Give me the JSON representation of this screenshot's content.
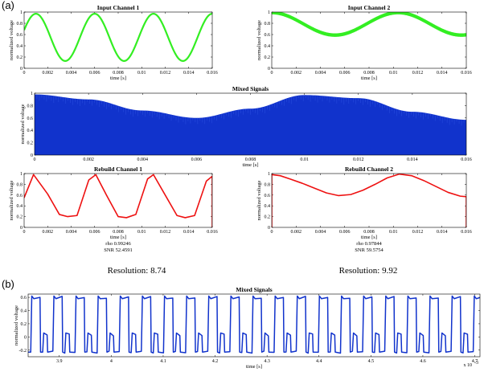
{
  "figure": {
    "label_a": "(a)",
    "label_b": "(b)",
    "resolution_1": "Resolution: 8.74",
    "resolution_2": "Resolution: 9.92"
  },
  "chart_data": [
    {
      "id": "in1",
      "type": "line",
      "title": "Input Channel 1",
      "xlabel": "time [s]",
      "ylabel": "normalized voltage",
      "xlim": [
        0,
        0.016
      ],
      "ylim": [
        0,
        1
      ],
      "xticks": [
        0,
        0.002,
        0.004,
        0.006,
        0.008,
        0.01,
        0.012,
        0.014,
        0.016
      ],
      "xtick_labels": [
        "0",
        "0.002",
        "0.004",
        "0.006",
        "0.008",
        "0.01",
        "0.012",
        "0.014",
        "0.016"
      ],
      "yticks": [
        0,
        0.2,
        0.4,
        0.6,
        0.8,
        1
      ],
      "ytick_labels": [
        "0",
        "0.2",
        "0.4",
        "0.6",
        "0.8",
        "1"
      ],
      "color": "#33ee22",
      "signal": {
        "form": "sine",
        "offset": 0.55,
        "amplitude": 0.42,
        "period": 0.005,
        "peak_at": 0.001
      }
    },
    {
      "id": "in2",
      "type": "line",
      "title": "Input Channel 2",
      "xlabel": "time [s]",
      "ylabel": "normalized voltage",
      "xlim": [
        0,
        0.016
      ],
      "ylim": [
        0,
        1
      ],
      "xticks": [
        0,
        0.002,
        0.004,
        0.006,
        0.008,
        0.01,
        0.012,
        0.014,
        0.016
      ],
      "xtick_labels": [
        "0",
        "0.002",
        "0.004",
        "0.006",
        "0.008",
        "0.01",
        "0.012",
        "0.014",
        "0.016"
      ],
      "yticks": [
        0,
        0.2,
        0.4,
        0.6,
        0.8,
        1
      ],
      "ytick_labels": [
        "0",
        "0.2",
        "0.4",
        "0.6",
        "0.8",
        "1"
      ],
      "color": "#33ee22",
      "signal": {
        "form": "sine",
        "offset": 0.79,
        "amplitude": 0.2,
        "period": 0.0104,
        "peak_at": 0.0104,
        "noise": 0.03
      }
    },
    {
      "id": "mix",
      "type": "area",
      "title": "Mixed Signals",
      "xlabel": "time [s]",
      "ylabel": "normalized voltage",
      "xlim": [
        0,
        0.016
      ],
      "ylim": [
        0,
        1
      ],
      "xticks": [
        0,
        0.002,
        0.004,
        0.006,
        0.008,
        0.01,
        0.012,
        0.014,
        0.016
      ],
      "xtick_labels": [
        "0",
        "0.002",
        "0.004",
        "0.006",
        "0.008",
        "0.01",
        "0.012",
        "0.014",
        "0.016"
      ],
      "yticks": [
        0,
        0.2,
        0.4,
        0.6,
        0.8,
        1
      ],
      "ytick_labels": [
        "0",
        "0.2",
        "0.4",
        "0.6",
        "0.8",
        "1"
      ],
      "color": "#1133cc",
      "envelope": {
        "x": [
          0,
          0.002,
          0.004,
          0.006,
          0.008,
          0.01,
          0.012,
          0.014,
          0.016
        ],
        "y": [
          0.98,
          0.9,
          0.72,
          0.6,
          0.75,
          0.97,
          0.92,
          0.7,
          0.57
        ]
      }
    },
    {
      "id": "rb1",
      "type": "line",
      "title": "Rebuild Channel 1",
      "xlabel": "time [s]",
      "ylabel": "normalized voltage",
      "xlim": [
        0,
        0.016
      ],
      "ylim": [
        0,
        1
      ],
      "xticks": [
        0,
        0.002,
        0.004,
        0.006,
        0.008,
        0.01,
        0.012,
        0.014,
        0.016
      ],
      "xtick_labels": [
        "0",
        "0.002",
        "0.004",
        "0.006",
        "0.008",
        "0.01",
        "0.012",
        "0.014",
        "0.016"
      ],
      "yticks": [
        0,
        0.2,
        0.4,
        0.6,
        0.8,
        1
      ],
      "ytick_labels": [
        "0",
        "0.2",
        "0.4",
        "0.6",
        "0.8",
        "1"
      ],
      "color": "#ee1111",
      "x": [
        0,
        0.0008,
        0.002,
        0.003,
        0.0037,
        0.0045,
        0.0055,
        0.0061,
        0.007,
        0.008,
        0.0087,
        0.0095,
        0.0105,
        0.011,
        0.012,
        0.013,
        0.0137,
        0.0145,
        0.0155,
        0.016,
        0.016
      ],
      "y": [
        0.55,
        0.98,
        0.62,
        0.24,
        0.2,
        0.22,
        0.88,
        0.98,
        0.6,
        0.2,
        0.18,
        0.24,
        0.9,
        0.98,
        0.6,
        0.22,
        0.18,
        0.22,
        0.86,
        0.95,
        0
      ],
      "rho_text": "rho 0.99246",
      "snr_text": "SNR 52.4591"
    },
    {
      "id": "rb2",
      "type": "line",
      "title": "Rebuild Channel 2",
      "xlabel": "time [s]",
      "ylabel": "normalized voltage",
      "xlim": [
        0,
        0.016
      ],
      "ylim": [
        0,
        1
      ],
      "xticks": [
        0,
        0.002,
        0.004,
        0.006,
        0.008,
        0.01,
        0.012,
        0.014,
        0.016
      ],
      "xtick_labels": [
        "0",
        "0.002",
        "0.004",
        "0.006",
        "0.008",
        "0.01",
        "0.012",
        "0.014",
        "0.016"
      ],
      "yticks": [
        0,
        0.2,
        0.4,
        0.6,
        0.8,
        1
      ],
      "ytick_labels": [
        "0",
        "0.2",
        "0.4",
        "0.6",
        "0.8",
        "1"
      ],
      "color": "#ee1111",
      "x": [
        0,
        0,
        0.0007,
        0.0015,
        0.0025,
        0.0035,
        0.0045,
        0.0055,
        0.0065,
        0.0075,
        0.0085,
        0.0095,
        0.0105,
        0.0115,
        0.0125,
        0.0135,
        0.0145,
        0.0155,
        0.016,
        0.016
      ],
      "y": [
        0,
        0.98,
        0.96,
        0.9,
        0.82,
        0.73,
        0.64,
        0.59,
        0.61,
        0.69,
        0.8,
        0.92,
        0.99,
        0.96,
        0.87,
        0.76,
        0.65,
        0.58,
        0.57,
        0
      ],
      "rho_text": "rho 0.97844",
      "snr_text": "SNR 59.5754"
    },
    {
      "id": "mixb",
      "type": "line",
      "title": "Mixed Signals",
      "xlabel": "time [s]",
      "ylabel": "normalized voltage",
      "xlim": [
        3.84,
        4.71
      ],
      "ylim": [
        -0.3,
        0.65
      ],
      "xticks": [
        3.9,
        4,
        4.1,
        4.2,
        4.3,
        4.4,
        4.5,
        4.6,
        4.7
      ],
      "xtick_labels": [
        "3.9",
        "4",
        "4.1",
        "4.2",
        "4.3",
        "4.4",
        "4.5",
        "4.6",
        "4.7"
      ],
      "yticks": [
        -0.2,
        0,
        0.2,
        0.4,
        0.6
      ],
      "ytick_labels": [
        "-0.2",
        "0",
        "0.2",
        "0.4",
        "0.6"
      ],
      "exponent_text": "x 10",
      "exponent_power": "-3",
      "color": "#1133cc",
      "pulses": {
        "period": 0.0426,
        "first_high_start": 3.845,
        "high_level": 0.6,
        "low_level": -0.23,
        "mid_level": 0.03,
        "high_fraction": 0.42,
        "mid_fraction": 0.2
      }
    }
  ]
}
